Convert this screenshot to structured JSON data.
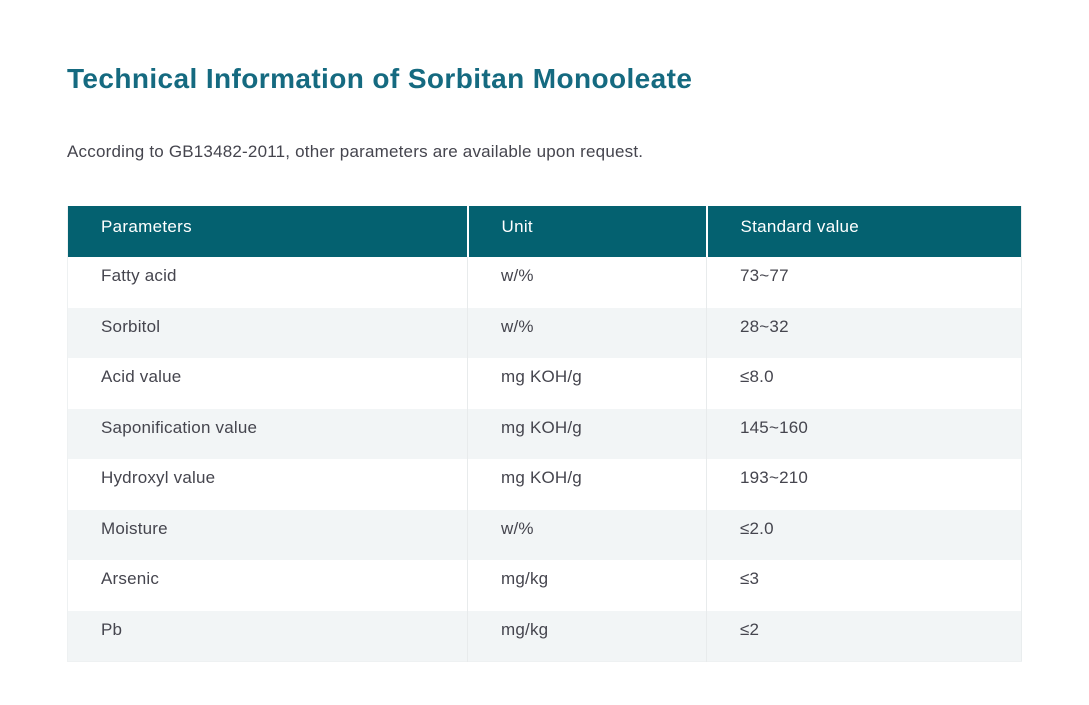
{
  "page": {
    "title": "Technical Information of Sorbitan Monooleate",
    "subtitle": "According to GB13482-2011, other parameters are available upon request."
  },
  "table": {
    "headers": [
      "Parameters",
      "Unit",
      "Standard value"
    ],
    "rows": [
      {
        "parameter": "Fatty acid",
        "unit": "w/%",
        "value": "73~77"
      },
      {
        "parameter": "Sorbitol",
        "unit": "w/%",
        "value": "28~32"
      },
      {
        "parameter": "Acid value",
        "unit": "mg KOH/g",
        "value": "≤8.0"
      },
      {
        "parameter": "Saponification value",
        "unit": "mg KOH/g",
        "value": "145~160"
      },
      {
        "parameter": "Hydroxyl value",
        "unit": "mg KOH/g",
        "value": "193~210"
      },
      {
        "parameter": "Moisture",
        "unit": "w/%",
        "value": "≤2.0"
      },
      {
        "parameter": "Arsenic",
        "unit": "mg/kg",
        "value": "≤3"
      },
      {
        "parameter": "Pb",
        "unit": "mg/kg",
        "value": "≤2"
      }
    ]
  },
  "colors": {
    "title_teal": "#156a80",
    "header_bg": "#046170",
    "header_text": "#ffffff",
    "body_text": "#45454e",
    "row_alt_bg": "#f2f5f6",
    "divider": "#e8ebec"
  }
}
